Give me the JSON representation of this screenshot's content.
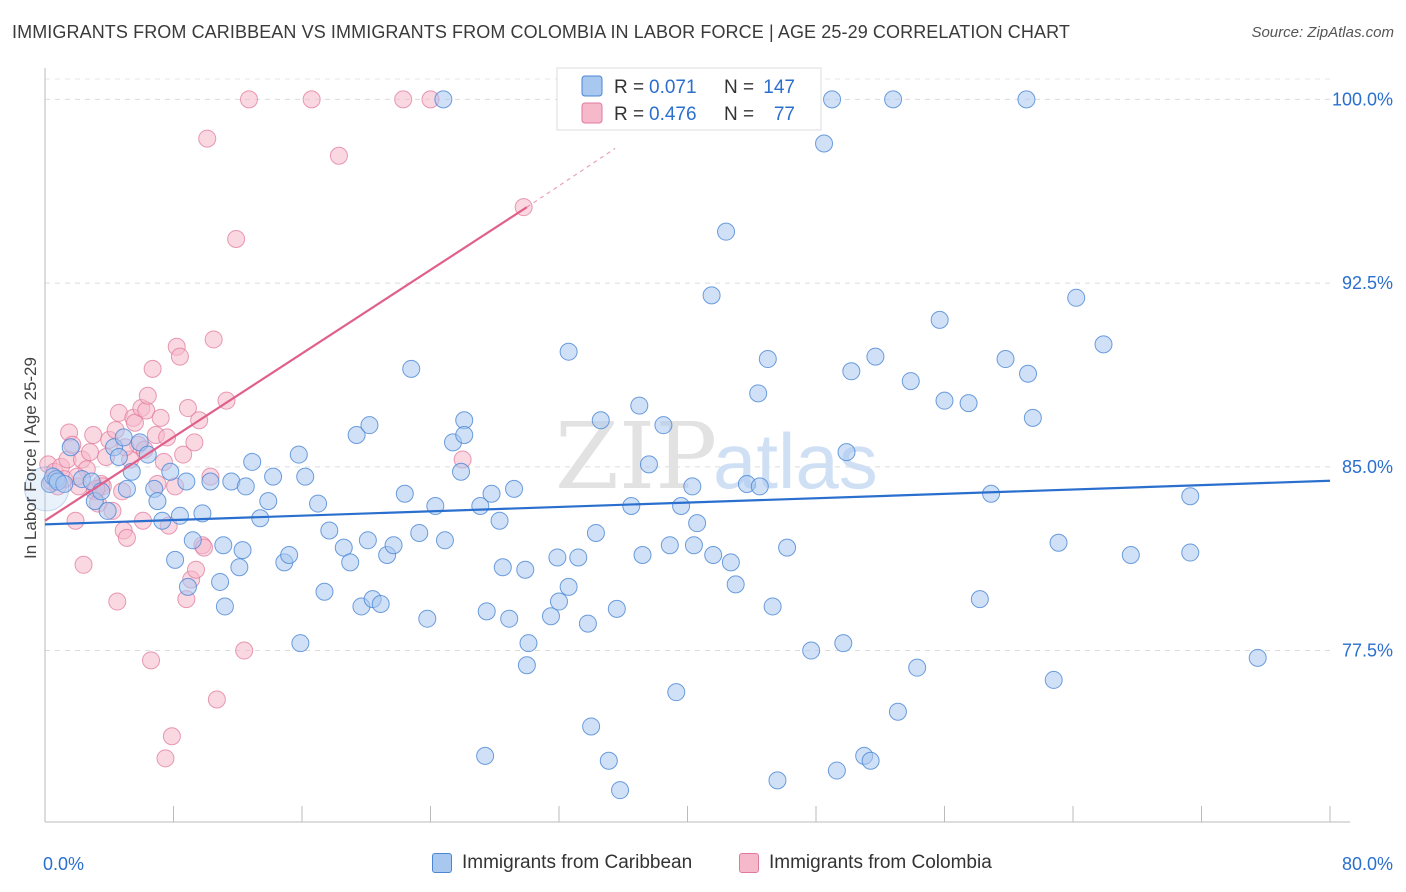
{
  "title": "IMMIGRANTS FROM CARIBBEAN VS IMMIGRANTS FROM COLOMBIA IN LABOR FORCE | AGE 25-29 CORRELATION CHART",
  "source": "Source: ZipAtlas.com",
  "watermark": {
    "zip": "ZIP",
    "atlas": "atlas"
  },
  "colors": {
    "caribbean_fill": "#a9c8f0",
    "caribbean_stroke": "#4a86d4",
    "caribbean_line": "#2a6fce",
    "colombia_fill": "#f6b8cb",
    "colombia_stroke": "#e07a9c",
    "colombia_line": "#e0608c",
    "value_text": "#2a6fce"
  },
  "stats": [
    {
      "r_label": "R =",
      "r": "0.071",
      "n_label": "N =",
      "n": "147"
    },
    {
      "r_label": "R =",
      "r": "0.476",
      "n_label": "N =",
      "n": "77"
    }
  ],
  "chart_data": {
    "type": "scatter",
    "xlabel": "",
    "ylabel": "In Labor Force | Age 25-29",
    "xlim": [
      0,
      80
    ],
    "ylim": [
      70.5,
      101.2
    ],
    "x_tick_labels": [
      "0.0%",
      "80.0%"
    ],
    "y_ticks": [
      77.5,
      85.0,
      92.5,
      100.0
    ],
    "y_tick_labels": [
      "77.5%",
      "85.0%",
      "92.5%",
      "100.0%"
    ],
    "grid": true,
    "legend_position": "bottom",
    "series": [
      {
        "name": "Immigrants from Caribbean",
        "r": 0.071,
        "n": 147,
        "trend": {
          "x": [
            0,
            80
          ],
          "y": [
            82.65,
            84.43
          ]
        },
        "points": [
          [
            0.3,
            84.3
          ],
          [
            0.5,
            84.6
          ],
          [
            0.7,
            84.5
          ],
          [
            0.8,
            84.4
          ],
          [
            1.2,
            84.3
          ],
          [
            1.6,
            85.8
          ],
          [
            2.3,
            84.5
          ],
          [
            2.9,
            84.4
          ],
          [
            3.1,
            83.6
          ],
          [
            3.5,
            84.0
          ],
          [
            3.9,
            83.2
          ],
          [
            4.3,
            85.8
          ],
          [
            4.6,
            85.4
          ],
          [
            4.9,
            86.2
          ],
          [
            5.1,
            84.1
          ],
          [
            5.4,
            84.8
          ],
          [
            5.9,
            86.0
          ],
          [
            6.4,
            85.5
          ],
          [
            6.8,
            84.1
          ],
          [
            7.0,
            83.6
          ],
          [
            7.3,
            82.8
          ],
          [
            7.8,
            84.8
          ],
          [
            8.1,
            81.2
          ],
          [
            8.4,
            83.0
          ],
          [
            8.8,
            84.4
          ],
          [
            8.9,
            80.1
          ],
          [
            9.2,
            82.0
          ],
          [
            9.8,
            83.1
          ],
          [
            10.3,
            84.4
          ],
          [
            10.9,
            80.3
          ],
          [
            11.1,
            81.8
          ],
          [
            11.2,
            79.3
          ],
          [
            11.6,
            84.4
          ],
          [
            12.1,
            80.9
          ],
          [
            12.3,
            81.6
          ],
          [
            12.5,
            84.2
          ],
          [
            12.9,
            85.2
          ],
          [
            13.4,
            82.9
          ],
          [
            13.9,
            83.6
          ],
          [
            14.2,
            84.6
          ],
          [
            14.9,
            81.1
          ],
          [
            15.2,
            81.4
          ],
          [
            15.8,
            85.5
          ],
          [
            15.9,
            77.8
          ],
          [
            16.2,
            84.6
          ],
          [
            17.0,
            83.5
          ],
          [
            17.4,
            79.9
          ],
          [
            17.7,
            82.4
          ],
          [
            18.6,
            81.7
          ],
          [
            19.0,
            81.1
          ],
          [
            19.4,
            86.3
          ],
          [
            19.7,
            79.3
          ],
          [
            20.1,
            82.0
          ],
          [
            20.2,
            86.7
          ],
          [
            20.4,
            79.6
          ],
          [
            20.9,
            79.4
          ],
          [
            21.3,
            81.4
          ],
          [
            21.7,
            81.8
          ],
          [
            22.4,
            83.9
          ],
          [
            22.8,
            89.0
          ],
          [
            23.3,
            82.3
          ],
          [
            23.8,
            78.8
          ],
          [
            24.3,
            83.4
          ],
          [
            24.9,
            82.0
          ],
          [
            25.4,
            86.0
          ],
          [
            25.9,
            84.8
          ],
          [
            26.1,
            86.9
          ],
          [
            27.1,
            83.4
          ],
          [
            27.4,
            73.2
          ],
          [
            27.5,
            79.1
          ],
          [
            27.8,
            83.9
          ],
          [
            28.3,
            82.8
          ],
          [
            28.5,
            80.9
          ],
          [
            28.9,
            78.8
          ],
          [
            29.2,
            84.1
          ],
          [
            29.9,
            80.8
          ],
          [
            30.0,
            76.9
          ],
          [
            30.1,
            77.8
          ],
          [
            31.5,
            78.9
          ],
          [
            31.9,
            81.3
          ],
          [
            32.0,
            79.5
          ],
          [
            32.6,
            89.7
          ],
          [
            33.2,
            81.3
          ],
          [
            32.6,
            80.1
          ],
          [
            33.8,
            78.6
          ],
          [
            34.0,
            74.4
          ],
          [
            34.3,
            82.3
          ],
          [
            34.6,
            86.9
          ],
          [
            35.1,
            73.0
          ],
          [
            35.6,
            79.2
          ],
          [
            35.8,
            71.8
          ],
          [
            36.5,
            83.4
          ],
          [
            37.0,
            87.5
          ],
          [
            37.2,
            81.4
          ],
          [
            37.6,
            85.1
          ],
          [
            38.5,
            86.7
          ],
          [
            38.9,
            81.8
          ],
          [
            39.3,
            75.8
          ],
          [
            39.6,
            83.4
          ],
          [
            40.3,
            84.2
          ],
          [
            40.4,
            81.8
          ],
          [
            40.6,
            82.7
          ],
          [
            41.6,
            81.4
          ],
          [
            42.4,
            94.6
          ],
          [
            42.7,
            81.1
          ],
          [
            43.0,
            80.2
          ],
          [
            43.7,
            84.3
          ],
          [
            44.5,
            84.2
          ],
          [
            44.4,
            88.0
          ],
          [
            45.0,
            89.4
          ],
          [
            45.3,
            79.3
          ],
          [
            45.6,
            72.2
          ],
          [
            46.2,
            81.7
          ],
          [
            47.7,
            77.5
          ],
          [
            49.3,
            72.6
          ],
          [
            49.7,
            77.8
          ],
          [
            49.9,
            85.6
          ],
          [
            50.2,
            88.9
          ],
          [
            51.0,
            73.2
          ],
          [
            51.4,
            73.0
          ],
          [
            51.7,
            89.5
          ],
          [
            53.1,
            75.0
          ],
          [
            53.9,
            88.5
          ],
          [
            54.3,
            76.8
          ],
          [
            55.7,
            91.0
          ],
          [
            56.0,
            87.7
          ],
          [
            57.5,
            87.6
          ],
          [
            58.2,
            79.6
          ],
          [
            58.9,
            83.9
          ],
          [
            59.8,
            89.4
          ],
          [
            61.2,
            88.8
          ],
          [
            61.5,
            87.0
          ],
          [
            62.8,
            76.3
          ],
          [
            63.1,
            81.9
          ],
          [
            64.2,
            91.9
          ],
          [
            65.9,
            90.0
          ],
          [
            67.6,
            81.4
          ],
          [
            71.3,
            83.8
          ],
          [
            71.3,
            81.5
          ],
          [
            75.5,
            77.2
          ],
          [
            24.8,
            100.0
          ],
          [
            49.0,
            100.0
          ],
          [
            52.8,
            100.0
          ],
          [
            61.1,
            100.0
          ],
          [
            48.5,
            98.2
          ],
          [
            41.5,
            92.0
          ],
          [
            26.1,
            86.3
          ]
        ]
      },
      {
        "name": "Immigrants from Colombia",
        "r": 0.476,
        "n": 77,
        "trend": {
          "x": [
            0,
            30.0
          ],
          "y": [
            82.8,
            95.6
          ]
        },
        "trend_extension": {
          "x": [
            30.0,
            35.5
          ],
          "y": [
            95.6,
            98.0
          ]
        },
        "points": [
          [
            0.2,
            85.1
          ],
          [
            0.4,
            84.4
          ],
          [
            0.6,
            84.8
          ],
          [
            0.8,
            84.2
          ],
          [
            1.0,
            85.0
          ],
          [
            1.2,
            84.5
          ],
          [
            1.4,
            85.3
          ],
          [
            1.5,
            86.4
          ],
          [
            1.7,
            85.9
          ],
          [
            1.9,
            82.8
          ],
          [
            2.1,
            84.2
          ],
          [
            2.3,
            85.3
          ],
          [
            2.4,
            81.0
          ],
          [
            2.6,
            84.9
          ],
          [
            2.8,
            85.6
          ],
          [
            3.0,
            86.3
          ],
          [
            3.1,
            84.0
          ],
          [
            3.3,
            83.5
          ],
          [
            3.5,
            84.3
          ],
          [
            3.6,
            84.2
          ],
          [
            3.8,
            85.4
          ],
          [
            4.0,
            86.1
          ],
          [
            4.2,
            83.2
          ],
          [
            4.4,
            86.5
          ],
          [
            4.6,
            87.2
          ],
          [
            4.8,
            84.0
          ],
          [
            4.9,
            82.4
          ],
          [
            5.1,
            82.1
          ],
          [
            5.3,
            85.3
          ],
          [
            5.5,
            87.0
          ],
          [
            5.6,
            86.8
          ],
          [
            5.8,
            85.9
          ],
          [
            6.0,
            87.4
          ],
          [
            6.1,
            82.8
          ],
          [
            6.3,
            87.3
          ],
          [
            6.4,
            87.9
          ],
          [
            6.6,
            77.1
          ],
          [
            6.7,
            89.0
          ],
          [
            6.9,
            86.3
          ],
          [
            7.0,
            84.3
          ],
          [
            7.2,
            87.0
          ],
          [
            7.4,
            85.2
          ],
          [
            7.6,
            86.2
          ],
          [
            7.7,
            82.6
          ],
          [
            7.9,
            74.0
          ],
          [
            8.1,
            84.2
          ],
          [
            8.2,
            89.9
          ],
          [
            8.4,
            89.5
          ],
          [
            8.6,
            85.5
          ],
          [
            8.8,
            79.6
          ],
          [
            8.9,
            87.4
          ],
          [
            9.1,
            80.4
          ],
          [
            9.3,
            86.0
          ],
          [
            9.4,
            80.8
          ],
          [
            9.6,
            86.9
          ],
          [
            9.8,
            81.8
          ],
          [
            9.9,
            81.7
          ],
          [
            10.1,
            98.4
          ],
          [
            10.3,
            84.6
          ],
          [
            10.5,
            90.2
          ],
          [
            10.7,
            75.5
          ],
          [
            11.3,
            87.7
          ],
          [
            11.9,
            94.3
          ],
          [
            12.4,
            77.5
          ],
          [
            12.7,
            100.0
          ],
          [
            16.6,
            100.0
          ],
          [
            18.3,
            97.7
          ],
          [
            22.3,
            100.0
          ],
          [
            24.0,
            100.0
          ],
          [
            26.0,
            85.3
          ],
          [
            29.8,
            95.6
          ],
          [
            4.5,
            79.5
          ],
          [
            7.5,
            73.1
          ],
          [
            6.2,
            85.7
          ],
          [
            3.2,
            84.1
          ],
          [
            5.0,
            85.8
          ],
          [
            2.0,
            84.6
          ]
        ]
      }
    ]
  },
  "legend": [
    {
      "label": "Immigrants from Caribbean"
    },
    {
      "label": "Immigrants from Colombia"
    }
  ]
}
